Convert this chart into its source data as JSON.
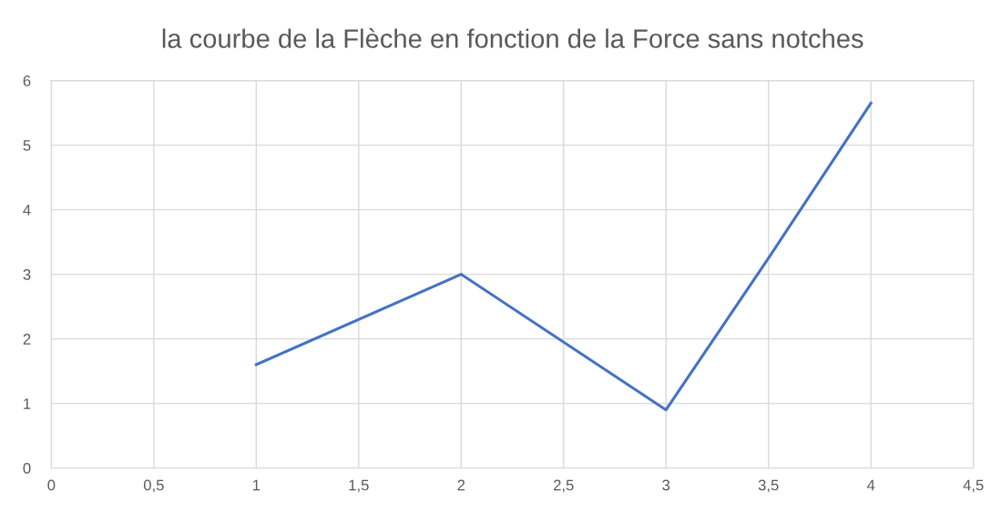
{
  "chart_data": {
    "type": "line",
    "title": "la courbe de la Flèche en fonction de la Force sans notches",
    "x": [
      1,
      2,
      3,
      3.5,
      4
    ],
    "series": [
      {
        "color": "#4472c4",
        "values": [
          1.6,
          3.0,
          0.9,
          3.25,
          5.65
        ]
      }
    ],
    "xlim": [
      0,
      4.5
    ],
    "ylim": [
      0,
      6
    ],
    "xticks": [
      0,
      {
        "value": 0.5,
        "label": "0,5"
      },
      1,
      {
        "value": 1.5,
        "label": "1,5"
      },
      2,
      {
        "value": 2.5,
        "label": "2,5"
      },
      3,
      {
        "value": 3.5,
        "label": "3,5"
      },
      4,
      {
        "value": 4.5,
        "label": "4,5"
      }
    ],
    "yticks": [
      0,
      1,
      2,
      3,
      4,
      5,
      6
    ],
    "grid": true,
    "line_style": "solid"
  }
}
